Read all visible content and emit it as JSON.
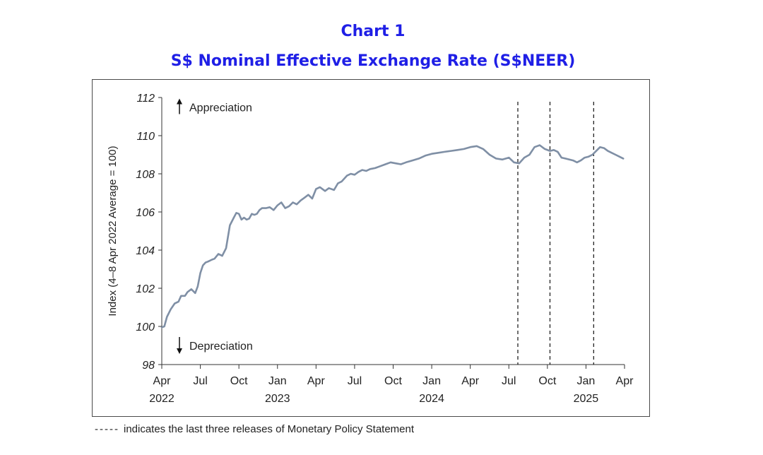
{
  "title": "Chart 1",
  "subtitle": "S$ Nominal Effective Exchange Rate (S$NEER)",
  "footnote": {
    "marker": "-----",
    "text": "indicates the last three releases of Monetary Policy Statement"
  },
  "colors": {
    "title": "#1f1fe6",
    "line": "#7f8fa5",
    "axis": "#333333"
  },
  "chart_data": {
    "type": "line",
    "ylabel": "Index (4–8 Apr 2022 Average = 100)",
    "ylim": [
      98,
      112
    ],
    "yticks": [
      98,
      100,
      102,
      104,
      106,
      108,
      110,
      112
    ],
    "xlim": [
      0,
      36
    ],
    "xticks": [
      {
        "m": 0,
        "label": "Apr",
        "year": "2022"
      },
      {
        "m": 3,
        "label": "Jul"
      },
      {
        "m": 6,
        "label": "Oct"
      },
      {
        "m": 9,
        "label": "Jan",
        "year": "2023"
      },
      {
        "m": 12,
        "label": "Apr"
      },
      {
        "m": 15,
        "label": "Jul"
      },
      {
        "m": 18,
        "label": "Oct"
      },
      {
        "m": 21,
        "label": "Jan",
        "year": "2024"
      },
      {
        "m": 24,
        "label": "Apr"
      },
      {
        "m": 27,
        "label": "Jul"
      },
      {
        "m": 30,
        "label": "Oct"
      },
      {
        "m": 33,
        "label": "Jan",
        "year": "2025"
      },
      {
        "m": 36,
        "label": "Apr"
      }
    ],
    "annotations": [
      {
        "text": "Appreciation",
        "arrow": "up",
        "y": 111.5
      },
      {
        "text": "Depreciation",
        "arrow": "down",
        "y": 99.0
      }
    ],
    "vlines_month": [
      27.7,
      30.2,
      33.6
    ],
    "series": [
      {
        "name": "S$NEER",
        "x": [
          0,
          0.2,
          0.4,
          0.7,
          1.0,
          1.3,
          1.5,
          1.8,
          2.0,
          2.3,
          2.6,
          2.8,
          3.0,
          3.2,
          3.4,
          3.6,
          3.9,
          4.1,
          4.4,
          4.7,
          5.0,
          5.3,
          5.6,
          5.8,
          6.0,
          6.2,
          6.4,
          6.6,
          6.8,
          7.0,
          7.2,
          7.4,
          7.6,
          7.8,
          8.1,
          8.4,
          8.7,
          9.0,
          9.3,
          9.6,
          9.9,
          10.2,
          10.5,
          10.8,
          11.1,
          11.4,
          11.7,
          12.0,
          12.3,
          12.7,
          13.0,
          13.4,
          13.7,
          14.0,
          14.4,
          14.7,
          15.0,
          15.3,
          15.6,
          15.9,
          16.2,
          16.6,
          17.0,
          17.4,
          17.8,
          18.2,
          18.6,
          19.0,
          19.5,
          20.0,
          20.5,
          21.0,
          21.5,
          22.0,
          22.5,
          23.0,
          23.5,
          24.0,
          24.5,
          25.0,
          25.5,
          26.0,
          26.5,
          27.0,
          27.4,
          27.8,
          28.2,
          28.6,
          29.0,
          29.4,
          29.8,
          30.2,
          30.5,
          30.8,
          31.1,
          31.4,
          31.7,
          32.0,
          32.3,
          32.6,
          32.9,
          33.2,
          33.5,
          33.8,
          34.1,
          34.4,
          34.7,
          35.0,
          35.3,
          35.6,
          35.9
        ],
        "values": [
          99.95,
          100.0,
          100.5,
          100.9,
          101.2,
          101.3,
          101.6,
          101.6,
          101.8,
          101.95,
          101.75,
          102.1,
          102.8,
          103.2,
          103.35,
          103.4,
          103.5,
          103.55,
          103.8,
          103.7,
          104.1,
          105.3,
          105.7,
          105.95,
          105.9,
          105.6,
          105.7,
          105.6,
          105.65,
          105.9,
          105.85,
          105.9,
          106.1,
          106.2,
          106.2,
          106.25,
          106.1,
          106.35,
          106.5,
          106.2,
          106.3,
          106.5,
          106.4,
          106.6,
          106.75,
          106.9,
          106.7,
          107.2,
          107.3,
          107.1,
          107.25,
          107.15,
          107.5,
          107.6,
          107.9,
          108.0,
          107.95,
          108.1,
          108.2,
          108.15,
          108.25,
          108.3,
          108.4,
          108.5,
          108.6,
          108.55,
          108.5,
          108.6,
          108.7,
          108.8,
          108.95,
          109.05,
          109.1,
          109.15,
          109.2,
          109.25,
          109.3,
          109.4,
          109.45,
          109.3,
          109.0,
          108.8,
          108.75,
          108.85,
          108.6,
          108.55,
          108.85,
          109.0,
          109.4,
          109.5,
          109.3,
          109.2,
          109.25,
          109.15,
          108.85,
          108.8,
          108.75,
          108.7,
          108.6,
          108.7,
          108.85,
          108.9,
          109.0,
          109.2,
          109.4,
          109.35,
          109.2,
          109.1,
          109.0,
          108.9,
          108.8
        ]
      }
    ]
  }
}
